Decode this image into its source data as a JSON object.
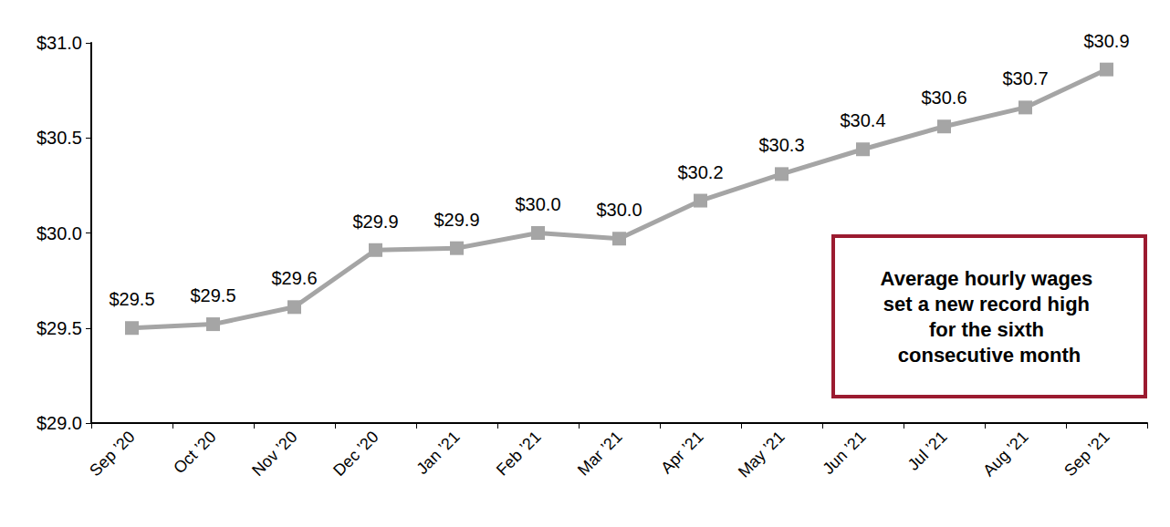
{
  "chart_data": {
    "type": "line",
    "categories": [
      "Sep ’20",
      "Oct ’20",
      "Nov ’20",
      "Dec ’20",
      "Jan ’21",
      "Feb ’21",
      "Mar ’21",
      "Apr ’21",
      "May ’21",
      "Jun ’21",
      "Jul ’21",
      "Aug ’21",
      "Sep ’21"
    ],
    "values": [
      29.5,
      29.52,
      29.61,
      29.91,
      29.92,
      30.0,
      29.97,
      30.17,
      30.31,
      30.44,
      30.56,
      30.66,
      30.86
    ],
    "value_labels": [
      "$29.5",
      "$29.5",
      "$29.6",
      "$29.9",
      "$29.9",
      "$30.0",
      "$30.0",
      "$30.2",
      "$30.3",
      "$30.4",
      "$30.6",
      "$30.7",
      "$30.9"
    ],
    "color": "#a5a5a5",
    "marker": "square",
    "line_style": "solid",
    "data_labels": true,
    "grid": false,
    "ylim": [
      29.0,
      31.0
    ],
    "yticks": [
      {
        "value": 29.0,
        "label": "$29.0"
      },
      {
        "value": 29.5,
        "label": "$29.5"
      },
      {
        "value": 30.0,
        "label": "$30.0"
      },
      {
        "value": 30.5,
        "label": "$30.5"
      },
      {
        "value": 31.0,
        "label": "$31.0"
      }
    ],
    "annotations": [
      {
        "text": "Average hourly wages set a new record high for the sixth consecutive month"
      }
    ]
  }
}
